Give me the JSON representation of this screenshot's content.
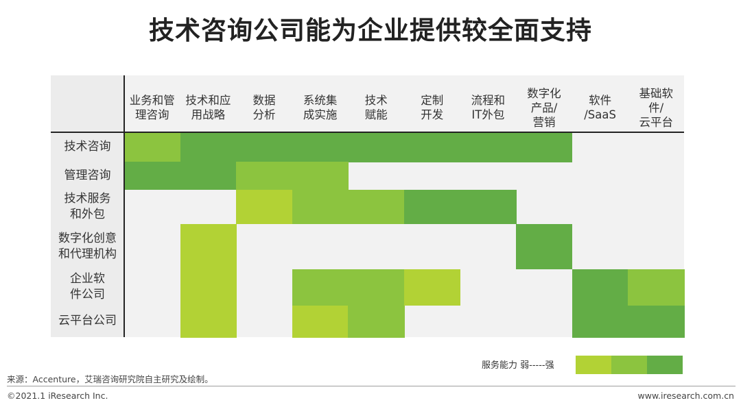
{
  "title": "技术咨询公司能为企业提供较全面支持",
  "colors": {
    "weak": "#b2d235",
    "medium": "#8cc43f",
    "strong": "#63ad46",
    "empty": "#f2f2f2"
  },
  "chart_data": {
    "type": "heatmap",
    "title": "技术咨询公司能为企业提供较全面支持",
    "columns": [
      "业务和管\n理咨询",
      "技术和应\n用战略",
      "数据\n分析",
      "系统集\n成实施",
      "技术\n赋能",
      "定制\n开发",
      "流程和\nIT外包",
      "数字化\n产品/\n营销",
      "软件\n/SaaS",
      "基础软\n件/\n云平台"
    ],
    "rows": [
      "技术咨询",
      "管理咨询",
      "技术服务\n和外包",
      "数字化创意\n和代理机构",
      "企业软\n件公司",
      "云平台公司"
    ],
    "scale": [
      "弱",
      "中",
      "强"
    ],
    "values": [
      [
        2,
        3,
        3,
        3,
        3,
        3,
        3,
        3,
        0,
        0
      ],
      [
        3,
        3,
        2,
        2,
        0,
        0,
        0,
        0,
        0,
        0
      ],
      [
        0,
        0,
        1,
        2,
        2,
        3,
        3,
        0,
        0,
        0
      ],
      [
        0,
        1,
        0,
        0,
        0,
        0,
        0,
        3,
        0,
        0
      ],
      [
        0,
        1,
        0,
        2,
        2,
        1,
        0,
        0,
        3,
        2
      ],
      [
        0,
        1,
        0,
        1,
        2,
        0,
        0,
        0,
        3,
        3
      ]
    ],
    "legend": {
      "label": "服务能力 弱-----强",
      "placement": "bottom-right"
    }
  },
  "source": "来源：Accenture，艾瑞咨询研究院自主研究及绘制。",
  "copyright": "©2021.1 iResearch Inc.",
  "website": "www.iresearch.com.cn"
}
